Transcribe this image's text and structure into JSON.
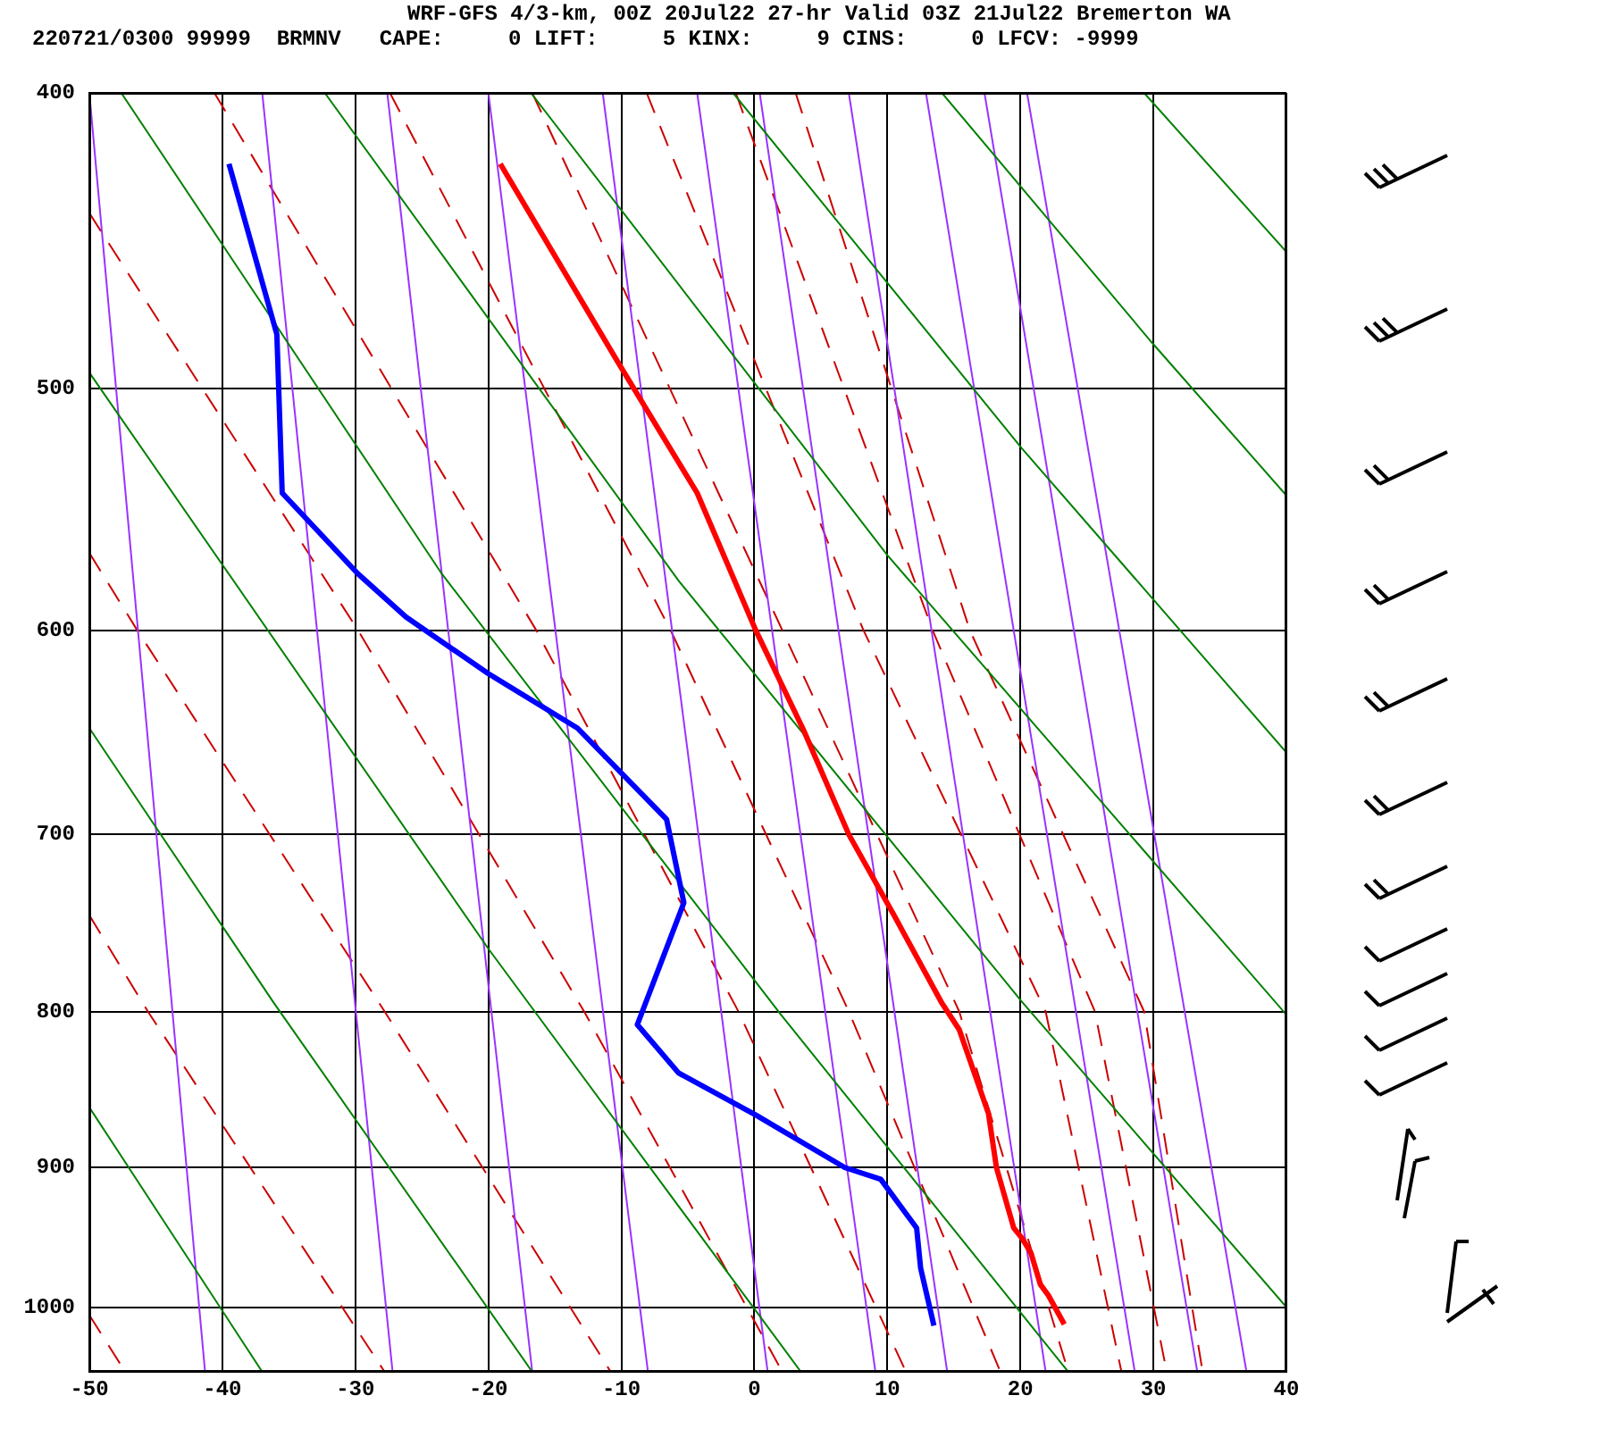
{
  "chart_data": {
    "type": "line",
    "title": "WRF-GFS 4/3-km, 00Z 20Jul22 27-hr Valid 03Z 21Jul22 Bremerton WA",
    "subtitle": "220721/0300 99999  BRMNV   CAPE:     0 LIFT:     5 KINX:     9 CINS:     0 LFCV: -9999",
    "xlim": [
      -50,
      40
    ],
    "xticks": [
      -50,
      -40,
      -30,
      -20,
      -10,
      0,
      10,
      20,
      30,
      40
    ],
    "ylim": [
      1050,
      400
    ],
    "yticks": [
      400,
      500,
      600,
      700,
      800,
      900,
      1000
    ],
    "log": "y",
    "grid": true,
    "legend": false,
    "marker": "none",
    "series": [
      {
        "color": "#ff0000",
        "x": [
          -19.1,
          -10.4,
          -4.3,
          0.1,
          3.7,
          7.1,
          10.5,
          14.1,
          15.4,
          17.6,
          18.2,
          19.5,
          20.1,
          20.8,
          21.5,
          22.1,
          23.3
        ],
        "values": [
          422,
          489,
          541,
          600,
          647,
          700,
          744,
          795,
          811,
          864,
          900,
          942,
          949,
          960,
          983,
          991,
          1013
        ]
      },
      {
        "color": "#0000ff",
        "x": [
          -39.5,
          -35.9,
          -35.5,
          -29.8,
          -26.2,
          -20.0,
          -13.3,
          -6.6,
          -5.3,
          -8.8,
          -5.7,
          0.1,
          6.8,
          9.5,
          12.2,
          12.5,
          13.5
        ],
        "values": [
          422,
          480,
          541,
          575,
          594,
          620,
          646,
          692,
          737,
          808,
          838,
          865,
          900,
          908,
          942,
          971,
          1014
        ]
      },
      {
        "color": "#008000",
        "x": [
          -50,
          -20.0,
          3.5
        ],
        "values": [
          494,
          763,
          1050
        ]
      },
      {
        "color": "#008000",
        "x": [
          -50,
          -36.2,
          -16.7
        ],
        "values": [
          646,
          794,
          1050
        ]
      },
      {
        "color": "#008000",
        "x": [
          -50,
          -37.0
        ],
        "values": [
          860,
          1050
        ]
      },
      {
        "color": "#008000",
        "x": [
          -47.6,
          -23.5,
          2.0,
          23.6
        ],
        "values": [
          400,
          575,
          802,
          1050
        ]
      },
      {
        "color": "#008000",
        "x": [
          -32.3,
          -5.7,
          20.1,
          40
        ],
        "values": [
          400,
          578,
          794,
          1000
        ]
      },
      {
        "color": "#008000",
        "x": [
          -16.8,
          10.0,
          40
        ],
        "values": [
          400,
          567,
          802
        ]
      },
      {
        "color": "#008000",
        "x": [
          -1.6,
          20.1,
          40
        ],
        "values": [
          400,
          523,
          658
        ]
      },
      {
        "color": "#008000",
        "x": [
          14.1,
          29.9,
          40
        ],
        "values": [
          400,
          483,
          542
        ]
      },
      {
        "color": "#008000",
        "x": [
          29.3,
          40
        ],
        "values": [
          400,
          451
        ]
      },
      {
        "color": "#9933ff",
        "x": [
          -50,
          -41.3
        ],
        "values": [
          400,
          1050
        ]
      },
      {
        "color": "#9933ff",
        "x": [
          -37.0,
          -27.2
        ],
        "values": [
          400,
          1050
        ]
      },
      {
        "color": "#9933ff",
        "x": [
          -27.6,
          -16.7
        ],
        "values": [
          400,
          1050
        ]
      },
      {
        "color": "#9933ff",
        "x": [
          -20.0,
          -8.0
        ],
        "values": [
          400,
          1050
        ]
      },
      {
        "color": "#9933ff",
        "x": [
          -11.4,
          1.0
        ],
        "values": [
          400,
          1050
        ]
      },
      {
        "color": "#9933ff",
        "x": [
          -4.3,
          9.1
        ],
        "values": [
          400,
          1050
        ]
      },
      {
        "color": "#9933ff",
        "x": [
          0.4,
          14.5
        ],
        "values": [
          400,
          1050
        ]
      },
      {
        "color": "#9933ff",
        "x": [
          7.1,
          21.9
        ],
        "values": [
          400,
          1050
        ]
      },
      {
        "color": "#9933ff",
        "x": [
          12.9,
          28.6
        ],
        "values": [
          400,
          1050
        ]
      },
      {
        "color": "#9933ff",
        "x": [
          17.3,
          33.3
        ],
        "values": [
          400,
          1050
        ]
      },
      {
        "color": "#9933ff",
        "x": [
          20.5,
          37.0
        ],
        "values": [
          400,
          1050
        ]
      },
      {
        "color": "#cc0000",
        "line_style": "dashed",
        "x": [
          -50,
          -47.3
        ],
        "values": [
          1006,
          1050
        ]
      },
      {
        "color": "#cc0000",
        "line_style": "dashed",
        "x": [
          -50,
          -45.6,
          -27.8
        ],
        "values": [
          744,
          800,
          1050
        ]
      },
      {
        "color": "#cc0000",
        "line_style": "dashed",
        "x": [
          -50,
          -46.4,
          -27.8,
          -10.8
        ],
        "values": [
          566,
          600,
          800,
          1050
        ]
      },
      {
        "color": "#cc0000",
        "line_style": "dashed",
        "x": [
          -50,
          -29.8,
          -12.8,
          2.1
        ],
        "values": [
          438,
          600,
          800,
          1050
        ]
      },
      {
        "color": "#cc0000",
        "line_style": "dashed",
        "x": [
          -40.6,
          -16.4,
          -1.2,
          11.4
        ],
        "values": [
          400,
          600,
          800,
          1050
        ]
      },
      {
        "color": "#cc0000",
        "line_style": "dashed",
        "x": [
          -27.4,
          -6.3,
          7.1,
          18.5
        ],
        "values": [
          400,
          600,
          800,
          1050
        ]
      },
      {
        "color": "#cc0000",
        "line_style": "dashed",
        "x": [
          -16.7,
          2.1,
          15.4,
          23.6
        ],
        "values": [
          400,
          600,
          800,
          1050
        ]
      },
      {
        "color": "#cc0000",
        "line_style": "dashed",
        "x": [
          -8.1,
          8.2,
          21.9,
          27.6
        ],
        "values": [
          400,
          600,
          800,
          1050
        ]
      },
      {
        "color": "#cc0000",
        "line_style": "dashed",
        "x": [
          -1.4,
          13.4,
          25.6,
          31.0
        ],
        "values": [
          400,
          600,
          800,
          1050
        ]
      },
      {
        "color": "#cc0000",
        "line_style": "dashed",
        "x": [
          3.1,
          16.2,
          29.3,
          33.7
        ],
        "values": [
          400,
          600,
          800,
          1050
        ]
      }
    ]
  }
}
